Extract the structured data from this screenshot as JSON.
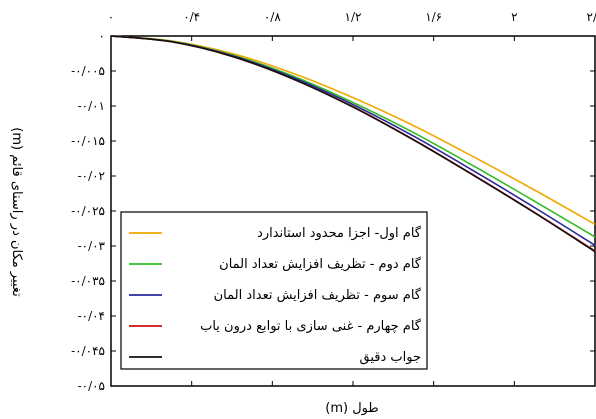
{
  "chart_data": {
    "type": "line",
    "title": "",
    "xlabel": "طول (m)",
    "ylabel": "تغییر مکان در راستای قائم (m)",
    "xlim": [
      0,
      2.4
    ],
    "ylim": [
      -0.05,
      0
    ],
    "x_ticks": [
      0,
      0.4,
      0.8,
      1.2,
      1.6,
      2.0,
      2.4
    ],
    "x_tick_labels": [
      "۰",
      "۰/۴",
      "۰/۸",
      "۱/۲",
      "۱/۶",
      "۲",
      "۲/۴"
    ],
    "y_ticks": [
      0,
      -0.005,
      -0.01,
      -0.015,
      -0.02,
      -0.025,
      -0.03,
      -0.035,
      -0.04,
      -0.045,
      -0.05
    ],
    "y_tick_labels": [
      "۰",
      "-۰/۰۰۵",
      "-۰/۰۱",
      "-۰/۰۱۵",
      "-۰/۰۲",
      "-۰/۰۲۵",
      "-۰/۰۳",
      "-۰/۰۳۵",
      "-۰/۰۴",
      "-۰/۰۴۵",
      "-۰/۰۵"
    ],
    "grid": false,
    "legend_position": "lower-left",
    "series": [
      {
        "name": "گام اول- اجزا محدود استاندارد",
        "color": "#f0a800",
        "x": [
          0,
          0.3,
          0.6,
          0.9,
          1.2,
          1.5,
          1.8,
          2.1,
          2.4
        ],
        "y": [
          0,
          -0.0007,
          -0.0025,
          -0.0053,
          -0.0088,
          -0.0128,
          -0.0173,
          -0.022,
          -0.0269
        ]
      },
      {
        "name": "گام دوم - تظریف افزایش تعداد المان",
        "color": "#33bb22",
        "x": [
          0,
          0.3,
          0.6,
          0.9,
          1.2,
          1.5,
          1.8,
          2.1,
          2.4
        ],
        "y": [
          0,
          -0.00075,
          -0.0027,
          -0.0057,
          -0.0095,
          -0.0138,
          -0.0186,
          -0.0236,
          -0.0287
        ]
      },
      {
        "name": "گام سوم - تظریف افزایش تعداد المان",
        "color": "#2a2a9a",
        "x": [
          0,
          0.3,
          0.6,
          0.9,
          1.2,
          1.5,
          1.8,
          2.1,
          2.4
        ],
        "y": [
          0,
          -0.0008,
          -0.0028,
          -0.0059,
          -0.0098,
          -0.0143,
          -0.0193,
          -0.0245,
          -0.0299
        ]
      },
      {
        "name": "گام چهارم - غنی سازی با توابع درون یاب",
        "color": "#cc1111",
        "x": [
          0,
          0.3,
          0.6,
          0.9,
          1.2,
          1.5,
          1.8,
          2.1,
          2.4
        ],
        "y": [
          0,
          -0.00082,
          -0.0029,
          -0.0061,
          -0.0101,
          -0.0148,
          -0.0199,
          -0.0252,
          -0.0307
        ]
      },
      {
        "name": "جواب دقیق",
        "color": "#111111",
        "x": [
          0,
          0.3,
          0.6,
          0.9,
          1.2,
          1.5,
          1.8,
          2.1,
          2.4
        ],
        "y": [
          0,
          -0.00082,
          -0.0029,
          -0.0061,
          -0.01015,
          -0.01485,
          -0.01995,
          -0.02525,
          -0.0308
        ]
      }
    ]
  }
}
